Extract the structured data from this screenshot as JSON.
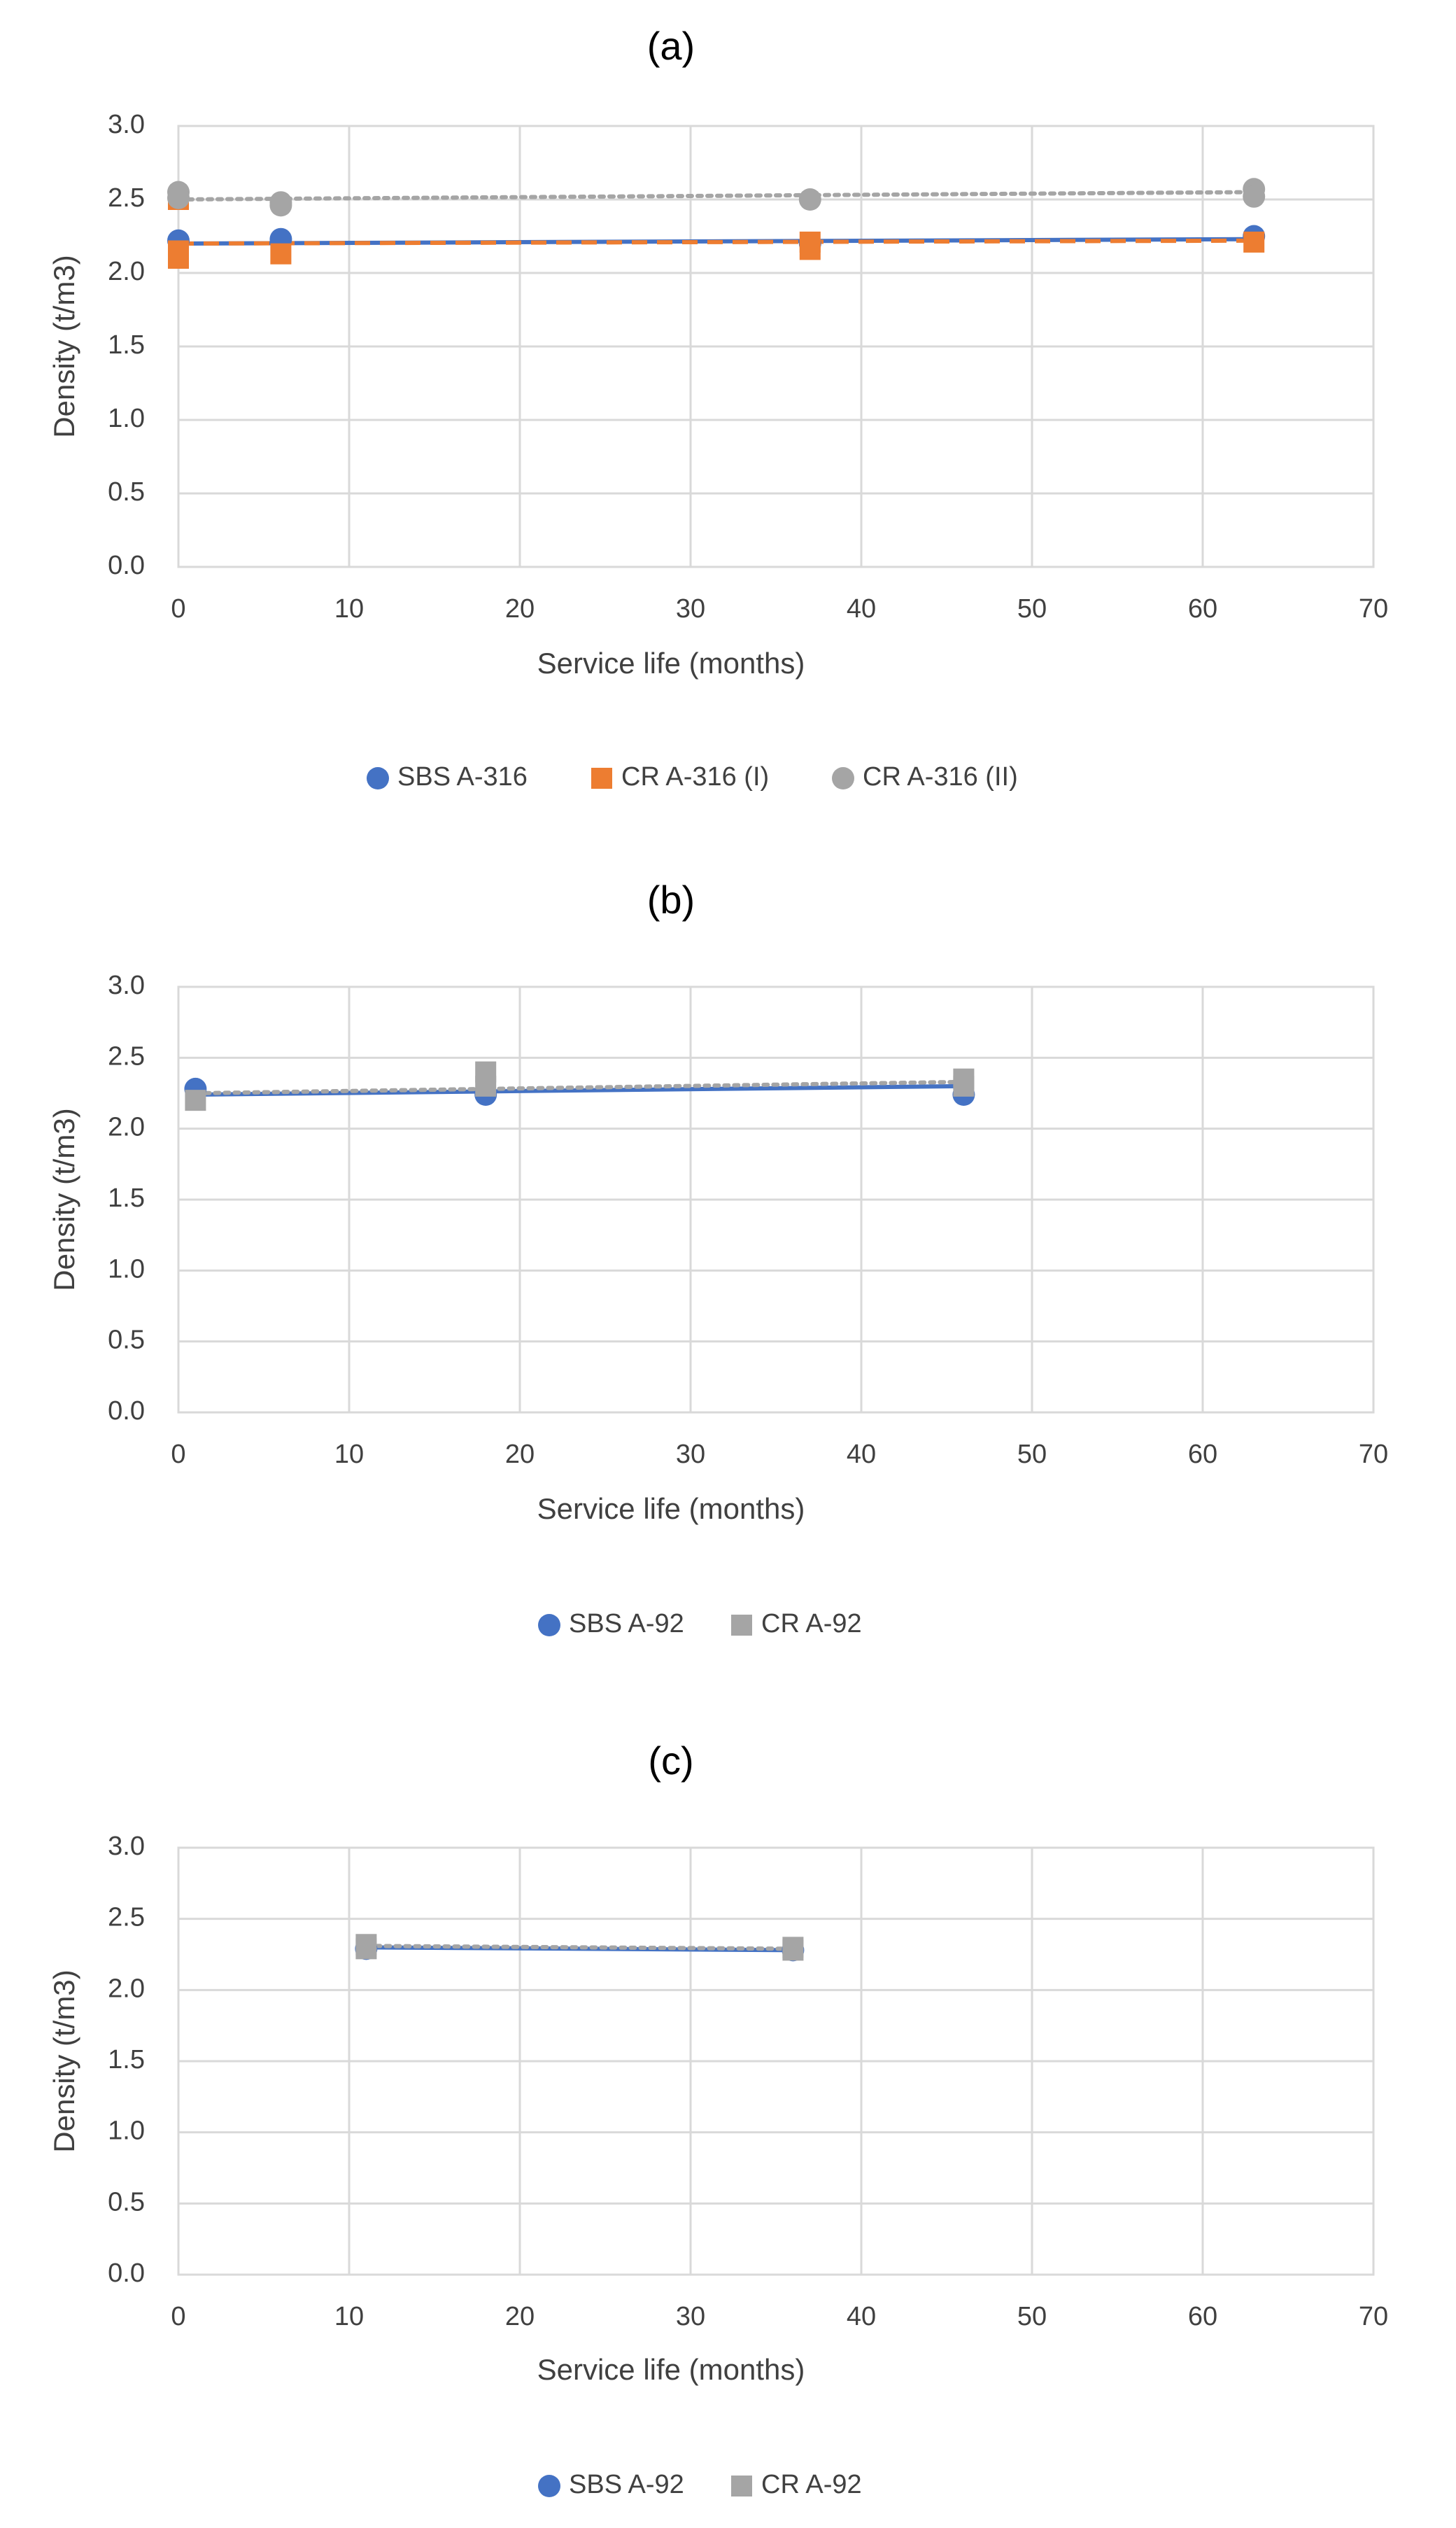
{
  "figure": {
    "description_labels": [
      "(a)",
      "(b)",
      "(c)"
    ]
  },
  "chart_data": [
    {
      "type": "scatter",
      "panel_label": "(a)",
      "xlabel": "Service life (months)",
      "ylabel": "Density (t/m3)",
      "xlim": [
        0,
        70
      ],
      "ylim": [
        0,
        3.0
      ],
      "x_ticks": [
        0,
        10,
        20,
        30,
        40,
        50,
        60,
        70
      ],
      "y_ticks": [
        0.0,
        0.5,
        1.0,
        1.5,
        2.0,
        2.5,
        3.0
      ],
      "x_tick_labels": [
        "0",
        "10",
        "20",
        "30",
        "40",
        "50",
        "60",
        "70"
      ],
      "y_tick_labels": [
        "0.0",
        "0.5",
        "1.0",
        "1.5",
        "2.0",
        "2.5",
        "3.0"
      ],
      "grid": true,
      "legend_position": "bottom",
      "series": [
        {
          "name": "SBS A-316",
          "marker": "circle",
          "color": "#4472C4",
          "points": [
            [
              0,
              2.22
            ],
            [
              6,
              2.23
            ],
            [
              37,
              2.2
            ],
            [
              63,
              2.25
            ]
          ],
          "trendline": {
            "style": "solid",
            "x": [
              0,
              63
            ],
            "y": [
              2.2,
              2.23
            ]
          }
        },
        {
          "name": "CR A-316 (I)",
          "marker": "square",
          "color": "#ED7D31",
          "points": [
            [
              0,
              2.5
            ],
            [
              0,
              2.15
            ],
            [
              0,
              2.1
            ],
            [
              6,
              2.13
            ],
            [
              37,
              2.21
            ],
            [
              37,
              2.16
            ],
            [
              63,
              2.21
            ]
          ],
          "trendline": {
            "style": "dashed",
            "x": [
              0,
              63
            ],
            "y": [
              2.2,
              2.22
            ]
          }
        },
        {
          "name": "CR A-316 (II)",
          "marker": "circle",
          "color": "#A5A5A5",
          "points": [
            [
              0,
              2.55
            ],
            [
              0,
              2.51
            ],
            [
              6,
              2.48
            ],
            [
              6,
              2.46
            ],
            [
              37,
              2.5
            ],
            [
              63,
              2.57
            ],
            [
              63,
              2.52
            ]
          ],
          "trendline": {
            "style": "dotted",
            "x": [
              0,
              63
            ],
            "y": [
              2.5,
              2.55
            ]
          }
        }
      ]
    },
    {
      "type": "scatter",
      "panel_label": "(b)",
      "xlabel": "Service life (months)",
      "ylabel": "Density (t/m3)",
      "xlim": [
        0,
        70
      ],
      "ylim": [
        0,
        3.0
      ],
      "x_ticks": [
        0,
        10,
        20,
        30,
        40,
        50,
        60,
        70
      ],
      "y_ticks": [
        0.0,
        0.5,
        1.0,
        1.5,
        2.0,
        2.5,
        3.0
      ],
      "x_tick_labels": [
        "0",
        "10",
        "20",
        "30",
        "40",
        "50",
        "60",
        "70"
      ],
      "y_tick_labels": [
        "0.0",
        "0.5",
        "1.0",
        "1.5",
        "2.0",
        "2.5",
        "3.0"
      ],
      "grid": true,
      "legend_position": "bottom",
      "series": [
        {
          "name": "SBS A-92",
          "marker": "circle",
          "color": "#4472C4",
          "points": [
            [
              1,
              2.28
            ],
            [
              18,
              2.24
            ],
            [
              46,
              2.24
            ]
          ],
          "trendline": {
            "style": "solid",
            "x": [
              1,
              46
            ],
            "y": [
              2.24,
              2.3
            ]
          }
        },
        {
          "name": "CR A-92",
          "marker": "square",
          "color": "#A5A5A5",
          "points": [
            [
              1,
              2.2
            ],
            [
              18,
              2.4
            ],
            [
              18,
              2.3
            ],
            [
              46,
              2.35
            ],
            [
              46,
              2.3
            ]
          ],
          "trendline": {
            "style": "dotted",
            "x": [
              1,
              46
            ],
            "y": [
              2.25,
              2.33
            ]
          }
        }
      ]
    },
    {
      "type": "scatter",
      "panel_label": "(c)",
      "xlabel": "Service life (months)",
      "ylabel": "Density (t/m3)",
      "xlim": [
        0,
        70
      ],
      "ylim": [
        0,
        3.0
      ],
      "x_ticks": [
        0,
        10,
        20,
        30,
        40,
        50,
        60,
        70
      ],
      "y_ticks": [
        0.0,
        0.5,
        1.0,
        1.5,
        2.0,
        2.5,
        3.0
      ],
      "x_tick_labels": [
        "0",
        "10",
        "20",
        "30",
        "40",
        "50",
        "60",
        "70"
      ],
      "y_tick_labels": [
        "0.0",
        "0.5",
        "1.0",
        "1.5",
        "2.0",
        "2.5",
        "3.0"
      ],
      "grid": true,
      "legend_position": "bottom",
      "series": [
        {
          "name": "SBS A-92",
          "marker": "circle",
          "color": "#4472C4",
          "points": [
            [
              11,
              2.29
            ],
            [
              36,
              2.28
            ]
          ],
          "trendline": {
            "style": "solid",
            "x": [
              11,
              36
            ],
            "y": [
              2.3,
              2.28
            ]
          }
        },
        {
          "name": "CR A-92",
          "marker": "square",
          "color": "#A5A5A5",
          "points": [
            [
              11,
              2.32
            ],
            [
              11,
              2.29
            ],
            [
              36,
              2.3
            ],
            [
              36,
              2.28
            ]
          ],
          "trendline": {
            "style": "dotted",
            "x": [
              11,
              36
            ],
            "y": [
              2.31,
              2.29
            ]
          }
        }
      ]
    }
  ]
}
